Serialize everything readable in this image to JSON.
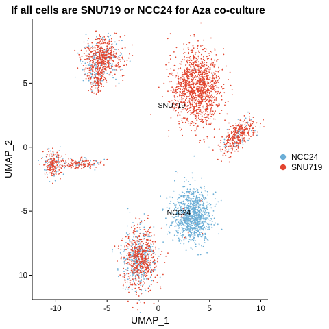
{
  "chart_data": {
    "type": "scatter",
    "title": "If all cells are SNU719 or NCC24 for Aza co-culture",
    "xlabel": "UMAP_1",
    "ylabel": "UMAP_2",
    "xlim": [
      -12.3,
      10.7
    ],
    "ylim": [
      -11.9,
      10.0
    ],
    "x_ticks": [
      -10,
      -5,
      0,
      5,
      10
    ],
    "y_ticks": [
      -10,
      -5,
      0,
      5
    ],
    "x_tick_labels": [
      "-10",
      "-5",
      "0",
      "5",
      "10"
    ],
    "y_tick_labels": [
      "-10",
      "-5",
      "0",
      "5"
    ],
    "grid": false,
    "legend_position": "right",
    "series": [
      {
        "name": "NCC24",
        "color": "#6BAED6"
      },
      {
        "name": "SNU719",
        "color": "#E2452F"
      }
    ],
    "cluster_labels": [
      {
        "text": "SNU719",
        "x": 1.3,
        "y": 3.1
      },
      {
        "text": "NCC24",
        "x": 2.0,
        "y": -5.3
      }
    ],
    "clusters": [
      {
        "id": "top-left",
        "center": [
          -5.4,
          6.9
        ],
        "spread": [
          1.1,
          1.0
        ],
        "count": 650,
        "ncc_frac": 0.28
      },
      {
        "id": "top-left-tail",
        "center": [
          -6.0,
          5.3
        ],
        "spread": [
          0.5,
          0.7
        ],
        "count": 120,
        "ncc_frac": 0.3
      },
      {
        "id": "snu719-main",
        "center": [
          3.8,
          4.6
        ],
        "spread": [
          1.4,
          1.8
        ],
        "count": 1200,
        "ncc_frac": 0.01
      },
      {
        "id": "right-arm",
        "center": [
          7.8,
          0.9
        ],
        "spread": [
          1.2,
          0.55
        ],
        "count": 360,
        "ncc_frac": 0.18,
        "tilt": 0.55
      },
      {
        "id": "left-blob",
        "center": [
          -10.3,
          -1.3
        ],
        "spread": [
          0.55,
          0.6
        ],
        "count": 200,
        "ncc_frac": 0.25
      },
      {
        "id": "left-tail",
        "center": [
          -7.7,
          -1.3
        ],
        "spread": [
          1.5,
          0.25
        ],
        "count": 170,
        "ncc_frac": 0.2
      },
      {
        "id": "ncc24-main",
        "center": [
          3.3,
          -5.4
        ],
        "spread": [
          1.1,
          1.2
        ],
        "count": 1000,
        "ncc_frac": 0.98
      },
      {
        "id": "bottom",
        "center": [
          -1.8,
          -8.7
        ],
        "spread": [
          0.95,
          1.4
        ],
        "count": 850,
        "ncc_frac": 0.38
      }
    ]
  }
}
